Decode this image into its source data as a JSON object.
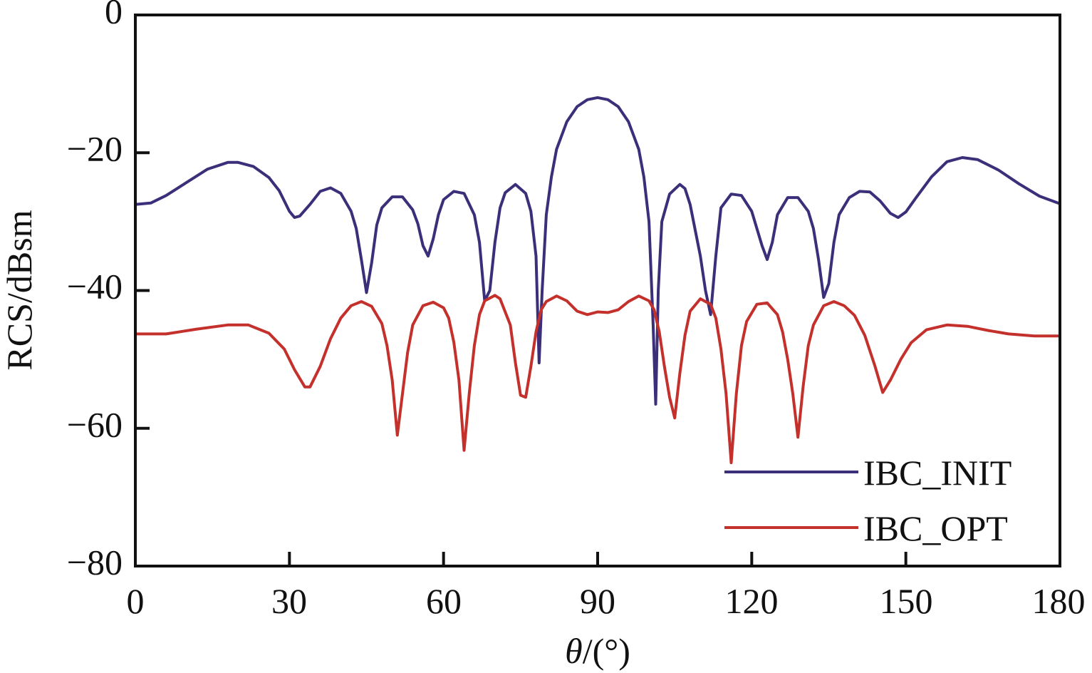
{
  "chart_data": {
    "type": "line",
    "title": "",
    "xlabel": "θ/(°)",
    "xlabel_symbol": "θ",
    "xlabel_unit": "/(°)",
    "ylabel": "RCS/dBsm",
    "xlim": [
      0,
      180
    ],
    "ylim": [
      -80,
      0
    ],
    "xticks": [
      0,
      30,
      60,
      90,
      120,
      150,
      180
    ],
    "yticks": [
      0,
      -20,
      -40,
      -60,
      -80
    ],
    "xtick_labels": [
      "0",
      "30",
      "60",
      "90",
      "120",
      "150",
      "180"
    ],
    "ytick_labels": [
      "0",
      "−20",
      "−40",
      "−60",
      "−80"
    ],
    "grid": false,
    "legend_position": "bottom-right",
    "series": [
      {
        "name": "IBC_INIT",
        "color": "#3b2f7a",
        "points": [
          [
            0,
            -27.5
          ],
          [
            3,
            -27.3
          ],
          [
            6,
            -26.2
          ],
          [
            10,
            -24.3
          ],
          [
            14,
            -22.4
          ],
          [
            18,
            -21.4
          ],
          [
            20,
            -21.4
          ],
          [
            23,
            -22.0
          ],
          [
            26,
            -23.6
          ],
          [
            28,
            -25.5
          ],
          [
            30,
            -28.5
          ],
          [
            31,
            -29.4
          ],
          [
            32,
            -29.2
          ],
          [
            34,
            -27.5
          ],
          [
            36,
            -25.6
          ],
          [
            38,
            -25.1
          ],
          [
            40,
            -25.9
          ],
          [
            42,
            -28.5
          ],
          [
            43,
            -31.0
          ],
          [
            44,
            -35.5
          ],
          [
            45,
            -40.3
          ],
          [
            46,
            -36.0
          ],
          [
            47,
            -30.5
          ],
          [
            48,
            -28.0
          ],
          [
            50,
            -26.4
          ],
          [
            52,
            -26.4
          ],
          [
            54,
            -28.3
          ],
          [
            55,
            -30.3
          ],
          [
            56,
            -33.5
          ],
          [
            57,
            -35.0
          ],
          [
            58,
            -32.5
          ],
          [
            59,
            -29.0
          ],
          [
            60,
            -26.8
          ],
          [
            62,
            -25.6
          ],
          [
            64,
            -25.9
          ],
          [
            66,
            -29.0
          ],
          [
            67,
            -33.0
          ],
          [
            68,
            -41.5
          ],
          [
            69,
            -40.0
          ],
          [
            70,
            -33.0
          ],
          [
            71,
            -28.0
          ],
          [
            72,
            -25.8
          ],
          [
            74,
            -24.6
          ],
          [
            76,
            -25.9
          ],
          [
            77,
            -28.5
          ],
          [
            78,
            -35.0
          ],
          [
            78.6,
            -50.5
          ],
          [
            79.2,
            -40.0
          ],
          [
            80,
            -29.0
          ],
          [
            81,
            -23.5
          ],
          [
            82,
            -19.5
          ],
          [
            84,
            -15.5
          ],
          [
            86,
            -13.3
          ],
          [
            88,
            -12.3
          ],
          [
            90,
            -12.0
          ],
          [
            92,
            -12.3
          ],
          [
            94,
            -13.3
          ],
          [
            96,
            -15.5
          ],
          [
            98,
            -19.5
          ],
          [
            99,
            -23.5
          ],
          [
            100,
            -30.0
          ],
          [
            100.8,
            -45.0
          ],
          [
            101.3,
            -56.5
          ],
          [
            101.8,
            -40.0
          ],
          [
            102.5,
            -30.0
          ],
          [
            104,
            -26.0
          ],
          [
            106,
            -24.6
          ],
          [
            107,
            -25.2
          ],
          [
            108,
            -27.5
          ],
          [
            110,
            -35.0
          ],
          [
            111,
            -40.0
          ],
          [
            112,
            -43.5
          ],
          [
            113,
            -35.0
          ],
          [
            114,
            -28.0
          ],
          [
            116,
            -26.0
          ],
          [
            118,
            -26.2
          ],
          [
            120,
            -28.5
          ],
          [
            122,
            -33.5
          ],
          [
            123,
            -35.5
          ],
          [
            124,
            -33.0
          ],
          [
            125,
            -29.0
          ],
          [
            127,
            -26.5
          ],
          [
            129,
            -26.5
          ],
          [
            131,
            -28.5
          ],
          [
            132,
            -31.0
          ],
          [
            133,
            -35.5
          ],
          [
            134,
            -41.0
          ],
          [
            135,
            -39.0
          ],
          [
            136,
            -33.0
          ],
          [
            137,
            -29.0
          ],
          [
            139,
            -26.5
          ],
          [
            141,
            -25.6
          ],
          [
            143,
            -25.7
          ],
          [
            145,
            -27.0
          ],
          [
            147,
            -28.8
          ],
          [
            148.5,
            -29.4
          ],
          [
            150,
            -28.6
          ],
          [
            152,
            -26.5
          ],
          [
            155,
            -23.5
          ],
          [
            158,
            -21.3
          ],
          [
            161,
            -20.7
          ],
          [
            164,
            -21.0
          ],
          [
            168,
            -22.5
          ],
          [
            172,
            -24.5
          ],
          [
            176,
            -26.3
          ],
          [
            180,
            -27.4
          ]
        ]
      },
      {
        "name": "IBC_OPT",
        "color": "#c4302b",
        "points": [
          [
            0,
            -46.3
          ],
          [
            6,
            -46.3
          ],
          [
            12,
            -45.6
          ],
          [
            18,
            -45.0
          ],
          [
            22,
            -45.0
          ],
          [
            26,
            -46.2
          ],
          [
            29,
            -48.5
          ],
          [
            31,
            -51.5
          ],
          [
            33,
            -54.0
          ],
          [
            34,
            -54.0
          ],
          [
            36,
            -51.0
          ],
          [
            38,
            -47.0
          ],
          [
            40,
            -44.0
          ],
          [
            42,
            -42.2
          ],
          [
            44,
            -41.6
          ],
          [
            46,
            -42.3
          ],
          [
            48,
            -44.8
          ],
          [
            49,
            -48.0
          ],
          [
            50,
            -53.0
          ],
          [
            51,
            -61.0
          ],
          [
            52,
            -55.0
          ],
          [
            53,
            -49.0
          ],
          [
            54,
            -45.0
          ],
          [
            56,
            -42.2
          ],
          [
            58,
            -41.7
          ],
          [
            60,
            -42.5
          ],
          [
            61,
            -44.0
          ],
          [
            62,
            -47.5
          ],
          [
            63,
            -53.0
          ],
          [
            64,
            -63.2
          ],
          [
            65,
            -55.0
          ],
          [
            66,
            -48.0
          ],
          [
            67,
            -43.5
          ],
          [
            68,
            -41.5
          ],
          [
            70,
            -40.7
          ],
          [
            71,
            -41.2
          ],
          [
            73,
            -45.0
          ],
          [
            74,
            -50.5
          ],
          [
            75,
            -55.2
          ],
          [
            76,
            -55.5
          ],
          [
            77,
            -51.0
          ],
          [
            78,
            -46.0
          ],
          [
            79,
            -42.8
          ],
          [
            80,
            -41.6
          ],
          [
            82,
            -40.8
          ],
          [
            84,
            -41.5
          ],
          [
            86,
            -43.0
          ],
          [
            88,
            -43.5
          ],
          [
            90,
            -43.1
          ],
          [
            92,
            -43.2
          ],
          [
            94,
            -42.8
          ],
          [
            96,
            -41.6
          ],
          [
            98,
            -40.8
          ],
          [
            100,
            -41.5
          ],
          [
            101,
            -42.8
          ],
          [
            102,
            -46.0
          ],
          [
            103,
            -51.0
          ],
          [
            104,
            -55.5
          ],
          [
            105,
            -58.5
          ],
          [
            106,
            -52.0
          ],
          [
            107,
            -46.5
          ],
          [
            108,
            -43.0
          ],
          [
            110,
            -41.2
          ],
          [
            112,
            -42.0
          ],
          [
            113,
            -44.0
          ],
          [
            114,
            -48.5
          ],
          [
            115,
            -55.0
          ],
          [
            116,
            -65.0
          ],
          [
            117,
            -55.0
          ],
          [
            118,
            -48.0
          ],
          [
            119,
            -44.5
          ],
          [
            121,
            -42.0
          ],
          [
            123,
            -41.8
          ],
          [
            125,
            -43.5
          ],
          [
            126,
            -46.0
          ],
          [
            127,
            -50.0
          ],
          [
            128,
            -55.0
          ],
          [
            129,
            -61.3
          ],
          [
            130,
            -54.0
          ],
          [
            131,
            -48.0
          ],
          [
            132,
            -45.0
          ],
          [
            134,
            -42.2
          ],
          [
            136,
            -41.6
          ],
          [
            138,
            -42.2
          ],
          [
            140,
            -43.6
          ],
          [
            142,
            -46.5
          ],
          [
            144,
            -51.0
          ],
          [
            145.5,
            -54.8
          ],
          [
            147,
            -53.0
          ],
          [
            149,
            -50.0
          ],
          [
            151,
            -47.6
          ],
          [
            154,
            -45.7
          ],
          [
            158,
            -45.0
          ],
          [
            162,
            -45.2
          ],
          [
            166,
            -45.8
          ],
          [
            170,
            -46.3
          ],
          [
            175,
            -46.6
          ],
          [
            180,
            -46.6
          ]
        ]
      }
    ]
  }
}
